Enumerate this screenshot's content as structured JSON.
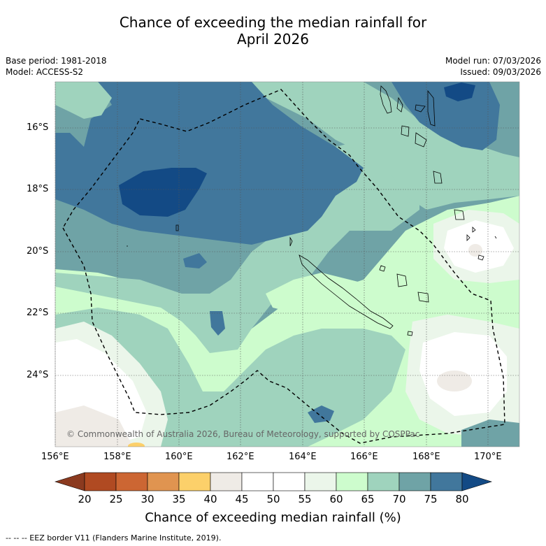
{
  "title": {
    "line1": "Chance of exceeding the median rainfall for",
    "line2": "April 2026"
  },
  "meta": {
    "base_period": "Base period: 1981-2018",
    "model": "Model: ACCESS-S2",
    "model_run": "Model run: 07/03/2026",
    "issued": "Issued: 09/03/2026"
  },
  "axes": {
    "lat_labels": [
      "16°S",
      "18°S",
      "20°S",
      "22°S",
      "24°S"
    ],
    "lon_labels": [
      "156°E",
      "158°E",
      "160°E",
      "162°E",
      "164°E",
      "166°E",
      "168°E",
      "170°E"
    ]
  },
  "copyright": "© Commonwealth of Australia 2026, Bureau of Meteorology, supported by COSPPac",
  "colorbar": {
    "title": "Chance of exceeding median rainfall (%)",
    "ticks": [
      "20",
      "25",
      "30",
      "35",
      "40",
      "45",
      "50",
      "55",
      "60",
      "65",
      "70",
      "75",
      "80"
    ],
    "colors": {
      "lt20": "#8b3a1f",
      "c20_25": "#b04a22",
      "c25_30": "#cc6633",
      "c30_35": "#e09450",
      "c35_40": "#fcd06a",
      "c40_45": "#efebe6",
      "c45_50": "#ffffff",
      "c50_55": "#ffffff",
      "c55_60": "#ebf6ea",
      "c60_65": "#cdfccd",
      "c65_70": "#9fd3bd",
      "c70_75": "#6fa3a6",
      "c75_80": "#41779c",
      "gt80": "#134a85"
    }
  },
  "footer": "--  --  -- EEZ border V11 (Flanders Marine Institute, 2019)."
}
